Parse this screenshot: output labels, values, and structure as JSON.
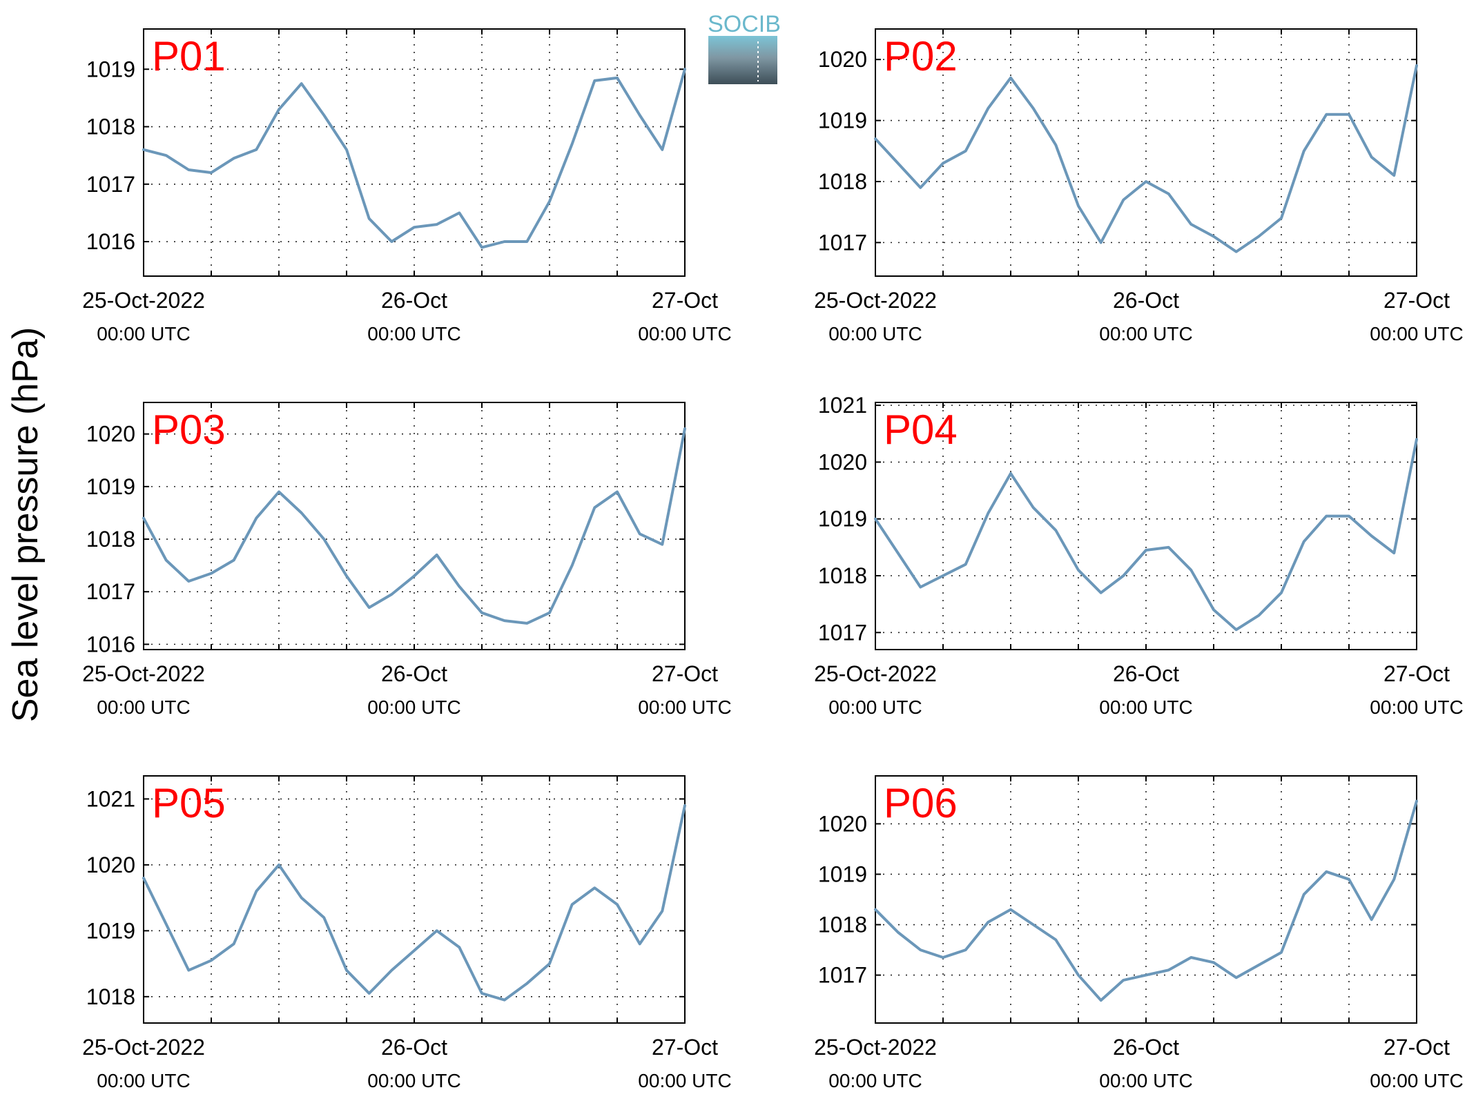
{
  "figure": {
    "ylabel": "Sea level pressure (hPa)",
    "logo_text": "SOCIB",
    "line_color": "#6b97b9",
    "label_color": "#ff0000"
  },
  "chart_data": [
    {
      "type": "line",
      "name": "P01",
      "x": [
        0,
        2,
        4,
        6,
        8,
        10,
        12,
        14,
        16,
        18,
        20,
        22,
        24,
        26,
        28,
        30,
        32,
        34,
        36,
        38,
        40,
        42,
        44,
        46,
        48
      ],
      "values": [
        1017.6,
        1017.5,
        1017.25,
        1017.2,
        1017.45,
        1017.6,
        1018.3,
        1018.75,
        1018.2,
        1017.6,
        1016.4,
        1016.0,
        1016.25,
        1016.3,
        1016.5,
        1015.9,
        1016.0,
        1016.0,
        1016.7,
        1017.7,
        1018.8,
        1018.85,
        1018.2,
        1017.6,
        1019.0
      ],
      "ylim": [
        1015.4,
        1019.7
      ],
      "yticks": [
        1016,
        1017,
        1018,
        1019
      ],
      "xticks": [
        "25-Oct-2022",
        "26-Oct",
        "27-Oct"
      ],
      "xticks_sub": [
        "00:00 UTC",
        "00:00 UTC",
        "00:00 UTC"
      ]
    },
    {
      "type": "line",
      "name": "P02",
      "x": [
        0,
        2,
        4,
        6,
        8,
        10,
        12,
        14,
        16,
        18,
        20,
        22,
        24,
        26,
        28,
        30,
        32,
        34,
        36,
        38,
        40,
        42,
        44,
        46,
        48
      ],
      "values": [
        1018.7,
        1018.3,
        1017.9,
        1018.3,
        1018.5,
        1019.2,
        1019.7,
        1019.2,
        1018.6,
        1017.6,
        1017.0,
        1017.7,
        1018.0,
        1017.8,
        1017.3,
        1017.1,
        1016.85,
        1017.1,
        1017.4,
        1018.5,
        1019.1,
        1019.1,
        1018.4,
        1018.1,
        1019.9
      ],
      "ylim": [
        1016.45,
        1020.5
      ],
      "yticks": [
        1017,
        1018,
        1019,
        1020
      ],
      "xticks": [
        "25-Oct-2022",
        "26-Oct",
        "27-Oct"
      ],
      "xticks_sub": [
        "00:00 UTC",
        "00:00 UTC",
        "00:00 UTC"
      ]
    },
    {
      "type": "line",
      "name": "P03",
      "x": [
        0,
        2,
        4,
        6,
        8,
        10,
        12,
        14,
        16,
        18,
        20,
        22,
        24,
        26,
        28,
        30,
        32,
        34,
        36,
        38,
        40,
        42,
        44,
        46,
        48
      ],
      "values": [
        1018.4,
        1017.6,
        1017.2,
        1017.35,
        1017.6,
        1018.4,
        1018.9,
        1018.5,
        1018.0,
        1017.3,
        1016.7,
        1016.95,
        1017.3,
        1017.7,
        1017.1,
        1016.6,
        1016.45,
        1016.4,
        1016.6,
        1017.5,
        1018.6,
        1018.9,
        1018.1,
        1017.9,
        1020.1
      ],
      "ylim": [
        1015.9,
        1020.6
      ],
      "yticks": [
        1016,
        1017,
        1018,
        1019,
        1020
      ],
      "xticks": [
        "25-Oct-2022",
        "26-Oct",
        "27-Oct"
      ],
      "xticks_sub": [
        "00:00 UTC",
        "00:00 UTC",
        "00:00 UTC"
      ]
    },
    {
      "type": "line",
      "name": "P04",
      "x": [
        0,
        2,
        4,
        6,
        8,
        10,
        12,
        14,
        16,
        18,
        20,
        22,
        24,
        26,
        28,
        30,
        32,
        34,
        36,
        38,
        40,
        42,
        44,
        46,
        48
      ],
      "values": [
        1019.0,
        1018.4,
        1017.8,
        1018.0,
        1018.2,
        1019.1,
        1019.8,
        1019.2,
        1018.8,
        1018.1,
        1017.7,
        1018.0,
        1018.45,
        1018.5,
        1018.1,
        1017.4,
        1017.05,
        1017.3,
        1017.7,
        1018.6,
        1019.05,
        1019.05,
        1018.7,
        1018.4,
        1020.4
      ],
      "ylim": [
        1016.7,
        1021.05
      ],
      "yticks": [
        1017,
        1018,
        1019,
        1020,
        1021
      ],
      "xticks": [
        "25-Oct-2022",
        "26-Oct",
        "27-Oct"
      ],
      "xticks_sub": [
        "00:00 UTC",
        "00:00 UTC",
        "00:00 UTC"
      ]
    },
    {
      "type": "line",
      "name": "P05",
      "x": [
        0,
        2,
        4,
        6,
        8,
        10,
        12,
        14,
        16,
        18,
        20,
        22,
        24,
        26,
        28,
        30,
        32,
        34,
        36,
        38,
        40,
        42,
        44,
        46,
        48
      ],
      "values": [
        1019.8,
        1019.1,
        1018.4,
        1018.55,
        1018.8,
        1019.6,
        1020.0,
        1019.5,
        1019.2,
        1018.4,
        1018.05,
        1018.4,
        1018.7,
        1019.0,
        1018.75,
        1018.05,
        1017.95,
        1018.2,
        1018.5,
        1019.4,
        1019.65,
        1019.4,
        1018.8,
        1019.3,
        1020.9
      ],
      "ylim": [
        1017.6,
        1021.35
      ],
      "yticks": [
        1018,
        1019,
        1020,
        1021
      ],
      "xticks": [
        "25-Oct-2022",
        "26-Oct",
        "27-Oct"
      ],
      "xticks_sub": [
        "00:00 UTC",
        "00:00 UTC",
        "00:00 UTC"
      ]
    },
    {
      "type": "line",
      "name": "P06",
      "x": [
        0,
        2,
        4,
        6,
        8,
        10,
        12,
        14,
        16,
        18,
        20,
        22,
        24,
        26,
        28,
        30,
        32,
        34,
        36,
        38,
        40,
        42,
        44,
        46,
        48
      ],
      "values": [
        1018.3,
        1017.85,
        1017.5,
        1017.35,
        1017.5,
        1018.05,
        1018.3,
        1018.0,
        1017.7,
        1017.0,
        1016.5,
        1016.9,
        1017.0,
        1017.1,
        1017.35,
        1017.25,
        1016.95,
        1017.2,
        1017.45,
        1018.6,
        1019.05,
        1018.9,
        1018.1,
        1018.9,
        1020.45
      ],
      "ylim": [
        1016.05,
        1020.95
      ],
      "yticks": [
        1017,
        1018,
        1019,
        1020
      ],
      "xticks": [
        "25-Oct-2022",
        "26-Oct",
        "27-Oct"
      ],
      "xticks_sub": [
        "00:00 UTC",
        "00:00 UTC",
        "00:00 UTC"
      ]
    }
  ]
}
